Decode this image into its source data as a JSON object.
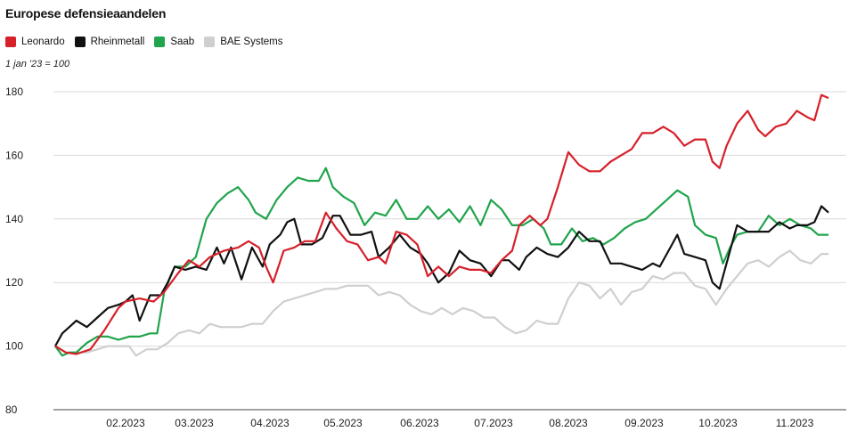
{
  "title": "Europese defensieaandelen",
  "note": "1 jan '23 = 100",
  "colors": {
    "Leonardo": "#d6202a",
    "Rheinmetall": "#111111",
    "Saab": "#20a44c",
    "BAE Systems": "#cfcfcf"
  },
  "chart_data": {
    "type": "line",
    "title": "Europese defensieaandelen",
    "subtitle": "1 jan '23 = 100",
    "ylim": [
      80,
      180
    ],
    "yticks": [
      80,
      100,
      120,
      140,
      160,
      180
    ],
    "xlim": [
      0,
      11
    ],
    "xtick_labels": [
      "02.2023",
      "03.2023",
      "04.2023",
      "05.2023",
      "06.2023",
      "07.2023",
      "08.2023",
      "09.2023",
      "10.2023",
      "11.2023"
    ],
    "legend": [
      "Leonardo",
      "Rheinmetall",
      "Saab",
      "BAE Systems"
    ],
    "legend_position": "top-left",
    "grid": "horizontal",
    "series": [
      {
        "name": "Leonardo",
        "points": [
          [
            0,
            100
          ],
          [
            0.15,
            98
          ],
          [
            0.3,
            97.5
          ],
          [
            0.5,
            99
          ],
          [
            0.7,
            105
          ],
          [
            0.9,
            112
          ],
          [
            1.0,
            114
          ],
          [
            1.2,
            115
          ],
          [
            1.4,
            114
          ],
          [
            1.55,
            117
          ],
          [
            1.75,
            123
          ],
          [
            1.9,
            127
          ],
          [
            2.05,
            125
          ],
          [
            2.2,
            128
          ],
          [
            2.4,
            130
          ],
          [
            2.6,
            131
          ],
          [
            2.75,
            133
          ],
          [
            2.9,
            131
          ],
          [
            3.0,
            125
          ],
          [
            3.1,
            120
          ],
          [
            3.25,
            130
          ],
          [
            3.4,
            131
          ],
          [
            3.55,
            133
          ],
          [
            3.7,
            133
          ],
          [
            3.85,
            142
          ],
          [
            4.0,
            137
          ],
          [
            4.15,
            133
          ],
          [
            4.3,
            132
          ],
          [
            4.45,
            127
          ],
          [
            4.6,
            128
          ],
          [
            4.7,
            126
          ],
          [
            4.85,
            136
          ],
          [
            5.0,
            135
          ],
          [
            5.15,
            132
          ],
          [
            5.3,
            122
          ],
          [
            5.45,
            125
          ],
          [
            5.6,
            122
          ],
          [
            5.75,
            125
          ],
          [
            5.9,
            124
          ],
          [
            6.05,
            124
          ],
          [
            6.2,
            123
          ],
          [
            6.35,
            127
          ],
          [
            6.5,
            130
          ],
          [
            6.6,
            138
          ],
          [
            6.75,
            141
          ],
          [
            6.9,
            138
          ],
          [
            7.0,
            140
          ],
          [
            7.15,
            150
          ],
          [
            7.3,
            161
          ],
          [
            7.45,
            157
          ],
          [
            7.6,
            155
          ],
          [
            7.75,
            155
          ],
          [
            7.9,
            158
          ],
          [
            8.05,
            160
          ],
          [
            8.2,
            162
          ],
          [
            8.35,
            167
          ],
          [
            8.5,
            167
          ],
          [
            8.65,
            169
          ],
          [
            8.8,
            167
          ],
          [
            8.95,
            163
          ],
          [
            9.1,
            165
          ],
          [
            9.25,
            165
          ],
          [
            9.35,
            158
          ],
          [
            9.45,
            156
          ],
          [
            9.55,
            163
          ],
          [
            9.7,
            170
          ],
          [
            9.85,
            174
          ],
          [
            10.0,
            168
          ],
          [
            10.1,
            166
          ],
          [
            10.25,
            169
          ],
          [
            10.4,
            170
          ],
          [
            10.55,
            174
          ],
          [
            10.7,
            172
          ],
          [
            10.8,
            171
          ],
          [
            10.9,
            179
          ],
          [
            11.0,
            178
          ]
        ]
      },
      {
        "name": "Rheinmetall",
        "points": [
          [
            0,
            100
          ],
          [
            0.1,
            104
          ],
          [
            0.2,
            106
          ],
          [
            0.3,
            108
          ],
          [
            0.45,
            106
          ],
          [
            0.6,
            109
          ],
          [
            0.75,
            112
          ],
          [
            0.9,
            113
          ],
          [
            1.0,
            114
          ],
          [
            1.1,
            116
          ],
          [
            1.2,
            108
          ],
          [
            1.35,
            116
          ],
          [
            1.5,
            116
          ],
          [
            1.6,
            120
          ],
          [
            1.7,
            125
          ],
          [
            1.85,
            124
          ],
          [
            2.0,
            125
          ],
          [
            2.15,
            124
          ],
          [
            2.3,
            131
          ],
          [
            2.4,
            126
          ],
          [
            2.5,
            131
          ],
          [
            2.65,
            121
          ],
          [
            2.8,
            131
          ],
          [
            2.95,
            125
          ],
          [
            3.05,
            132
          ],
          [
            3.2,
            135
          ],
          [
            3.3,
            139
          ],
          [
            3.4,
            140
          ],
          [
            3.5,
            132
          ],
          [
            3.65,
            132
          ],
          [
            3.8,
            134
          ],
          [
            3.95,
            141
          ],
          [
            4.05,
            141
          ],
          [
            4.2,
            135
          ],
          [
            4.35,
            135
          ],
          [
            4.5,
            136
          ],
          [
            4.6,
            128
          ],
          [
            4.75,
            131
          ],
          [
            4.9,
            135
          ],
          [
            5.05,
            131
          ],
          [
            5.2,
            129
          ],
          [
            5.3,
            126
          ],
          [
            5.45,
            120
          ],
          [
            5.6,
            123
          ],
          [
            5.75,
            130
          ],
          [
            5.9,
            127
          ],
          [
            6.05,
            126
          ],
          [
            6.2,
            122
          ],
          [
            6.35,
            127
          ],
          [
            6.45,
            127
          ],
          [
            6.6,
            124
          ],
          [
            6.7,
            128
          ],
          [
            6.85,
            131
          ],
          [
            7.0,
            129
          ],
          [
            7.15,
            128
          ],
          [
            7.3,
            131
          ],
          [
            7.45,
            136
          ],
          [
            7.6,
            133
          ],
          [
            7.75,
            133
          ],
          [
            7.9,
            126
          ],
          [
            8.05,
            126
          ],
          [
            8.2,
            125
          ],
          [
            8.35,
            124
          ],
          [
            8.5,
            126
          ],
          [
            8.6,
            125
          ],
          [
            8.75,
            131
          ],
          [
            8.85,
            135
          ],
          [
            8.95,
            129
          ],
          [
            9.1,
            128
          ],
          [
            9.25,
            127
          ],
          [
            9.35,
            120
          ],
          [
            9.45,
            118
          ],
          [
            9.6,
            130
          ],
          [
            9.7,
            138
          ],
          [
            9.85,
            136
          ],
          [
            10.0,
            136
          ],
          [
            10.15,
            136
          ],
          [
            10.3,
            139
          ],
          [
            10.45,
            137
          ],
          [
            10.55,
            138
          ],
          [
            10.7,
            138
          ],
          [
            10.8,
            139
          ],
          [
            10.9,
            144
          ],
          [
            11.0,
            142
          ]
        ]
      },
      {
        "name": "Saab",
        "points": [
          [
            0,
            100
          ],
          [
            0.1,
            97
          ],
          [
            0.2,
            98
          ],
          [
            0.3,
            98
          ],
          [
            0.45,
            101
          ],
          [
            0.6,
            103
          ],
          [
            0.75,
            103
          ],
          [
            0.9,
            102
          ],
          [
            1.05,
            103
          ],
          [
            1.2,
            103
          ],
          [
            1.35,
            104
          ],
          [
            1.45,
            104
          ],
          [
            1.55,
            117
          ],
          [
            1.7,
            125
          ],
          [
            1.85,
            125
          ],
          [
            2.0,
            128
          ],
          [
            2.15,
            140
          ],
          [
            2.3,
            145
          ],
          [
            2.45,
            148
          ],
          [
            2.6,
            150
          ],
          [
            2.75,
            146
          ],
          [
            2.85,
            142
          ],
          [
            3.0,
            140
          ],
          [
            3.15,
            146
          ],
          [
            3.3,
            150
          ],
          [
            3.45,
            153
          ],
          [
            3.6,
            152
          ],
          [
            3.75,
            152
          ],
          [
            3.85,
            156
          ],
          [
            3.95,
            150
          ],
          [
            4.1,
            147
          ],
          [
            4.25,
            145
          ],
          [
            4.4,
            138
          ],
          [
            4.55,
            142
          ],
          [
            4.7,
            141
          ],
          [
            4.85,
            146
          ],
          [
            5.0,
            140
          ],
          [
            5.15,
            140
          ],
          [
            5.3,
            144
          ],
          [
            5.45,
            140
          ],
          [
            5.6,
            143
          ],
          [
            5.75,
            139
          ],
          [
            5.9,
            144
          ],
          [
            6.05,
            138
          ],
          [
            6.2,
            146
          ],
          [
            6.35,
            143
          ],
          [
            6.5,
            138
          ],
          [
            6.65,
            138
          ],
          [
            6.8,
            140
          ],
          [
            6.95,
            137
          ],
          [
            7.05,
            132
          ],
          [
            7.2,
            132
          ],
          [
            7.35,
            137
          ],
          [
            7.5,
            133
          ],
          [
            7.65,
            134
          ],
          [
            7.8,
            132
          ],
          [
            7.95,
            134
          ],
          [
            8.1,
            137
          ],
          [
            8.25,
            139
          ],
          [
            8.4,
            140
          ],
          [
            8.55,
            143
          ],
          [
            8.7,
            146
          ],
          [
            8.85,
            149
          ],
          [
            9.0,
            147
          ],
          [
            9.1,
            138
          ],
          [
            9.25,
            135
          ],
          [
            9.4,
            134
          ],
          [
            9.5,
            126
          ],
          [
            9.6,
            131
          ],
          [
            9.7,
            135
          ],
          [
            9.85,
            136
          ],
          [
            10.0,
            136
          ],
          [
            10.15,
            141
          ],
          [
            10.3,
            138
          ],
          [
            10.45,
            140
          ],
          [
            10.6,
            138
          ],
          [
            10.75,
            137
          ],
          [
            10.85,
            135
          ],
          [
            11.0,
            135
          ]
        ]
      },
      {
        "name": "BAE Systems",
        "points": [
          [
            0,
            100
          ],
          [
            0.15,
            98
          ],
          [
            0.3,
            98
          ],
          [
            0.45,
            98
          ],
          [
            0.6,
            99
          ],
          [
            0.75,
            100
          ],
          [
            0.9,
            100
          ],
          [
            1.05,
            100
          ],
          [
            1.15,
            97
          ],
          [
            1.3,
            99
          ],
          [
            1.45,
            99
          ],
          [
            1.6,
            101
          ],
          [
            1.75,
            104
          ],
          [
            1.9,
            105
          ],
          [
            2.05,
            104
          ],
          [
            2.2,
            107
          ],
          [
            2.35,
            106
          ],
          [
            2.5,
            106
          ],
          [
            2.65,
            106
          ],
          [
            2.8,
            107
          ],
          [
            2.95,
            107
          ],
          [
            3.1,
            111
          ],
          [
            3.25,
            114
          ],
          [
            3.4,
            115
          ],
          [
            3.55,
            116
          ],
          [
            3.7,
            117
          ],
          [
            3.85,
            118
          ],
          [
            4.0,
            118
          ],
          [
            4.15,
            119
          ],
          [
            4.3,
            119
          ],
          [
            4.45,
            119
          ],
          [
            4.6,
            116
          ],
          [
            4.75,
            117
          ],
          [
            4.9,
            116
          ],
          [
            5.05,
            113
          ],
          [
            5.2,
            111
          ],
          [
            5.35,
            110
          ],
          [
            5.5,
            112
          ],
          [
            5.65,
            110
          ],
          [
            5.8,
            112
          ],
          [
            5.95,
            111
          ],
          [
            6.1,
            109
          ],
          [
            6.25,
            109
          ],
          [
            6.4,
            106
          ],
          [
            6.55,
            104
          ],
          [
            6.7,
            105
          ],
          [
            6.85,
            108
          ],
          [
            7.0,
            107
          ],
          [
            7.15,
            107
          ],
          [
            7.3,
            115
          ],
          [
            7.45,
            120
          ],
          [
            7.6,
            119
          ],
          [
            7.75,
            115
          ],
          [
            7.9,
            118
          ],
          [
            8.05,
            113
          ],
          [
            8.2,
            117
          ],
          [
            8.35,
            118
          ],
          [
            8.5,
            122
          ],
          [
            8.65,
            121
          ],
          [
            8.8,
            123
          ],
          [
            8.95,
            123
          ],
          [
            9.1,
            119
          ],
          [
            9.25,
            118
          ],
          [
            9.4,
            113
          ],
          [
            9.55,
            118
          ],
          [
            9.7,
            122
          ],
          [
            9.85,
            126
          ],
          [
            10.0,
            127
          ],
          [
            10.15,
            125
          ],
          [
            10.3,
            128
          ],
          [
            10.45,
            130
          ],
          [
            10.6,
            127
          ],
          [
            10.75,
            126
          ],
          [
            10.9,
            129
          ],
          [
            11.0,
            129
          ]
        ]
      }
    ]
  }
}
